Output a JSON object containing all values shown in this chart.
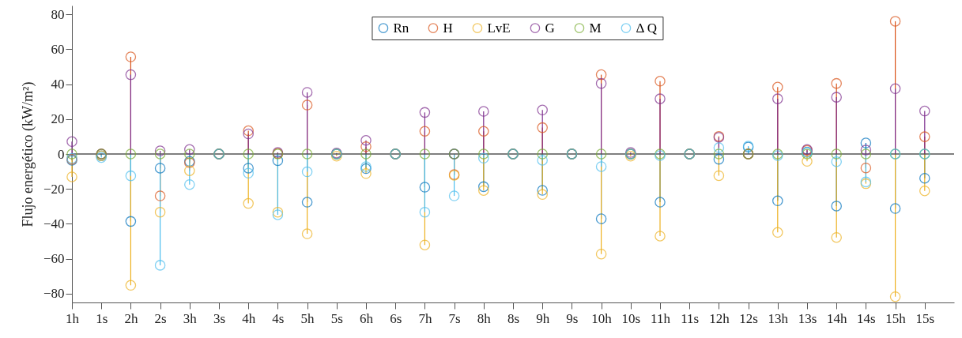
{
  "chart_data": {
    "type": "lollipop",
    "ylabel": "Flujo energético (kW/m²)",
    "categories": [
      "1h",
      "1s",
      "2h",
      "2s",
      "3h",
      "3s",
      "4h",
      "4s",
      "5h",
      "5s",
      "6h",
      "6s",
      "7h",
      "7s",
      "8h",
      "8s",
      "9h",
      "9s",
      "10h",
      "10s",
      "11h",
      "11s",
      "12h",
      "12s",
      "13h",
      "13s",
      "14h",
      "14s",
      "15h",
      "15s"
    ],
    "series": [
      {
        "name": "Rn",
        "color": "#0072bd",
        "values": [
          -3.6,
          -1,
          -38.6,
          -8.1,
          -4.2,
          0,
          -8.1,
          -3.8,
          -27.6,
          0,
          -8.4,
          0,
          -19,
          0,
          -18.7,
          0,
          -20.8,
          0,
          -37.1,
          0,
          -27.6,
          0,
          -3,
          4,
          -26.8,
          1.1,
          -29.8,
          6.3,
          -31.2,
          -13.9
        ]
      },
      {
        "name": "H",
        "color": "#d95319",
        "values": [
          -3,
          0,
          55.6,
          -24,
          -5,
          0,
          13.3,
          0.3,
          28,
          0,
          4.2,
          0,
          13,
          -11.8,
          13,
          0,
          15.1,
          0,
          45.4,
          0,
          41.7,
          0,
          10.1,
          0,
          38.3,
          2.1,
          40.4,
          -8,
          76,
          9.9
        ]
      },
      {
        "name": "LvE",
        "color": "#edb120",
        "values": [
          -13.1,
          -1,
          -75.2,
          -33.3,
          -9.6,
          0,
          -28.3,
          -33.3,
          -45.7,
          -1.2,
          -11.2,
          0,
          -52.1,
          -12.2,
          -20.9,
          0,
          -23.2,
          0,
          -57.3,
          -1.2,
          -47,
          0,
          -12.4,
          0,
          -44.9,
          -4.2,
          -47.8,
          -17,
          -81.7,
          -21.1
        ]
      },
      {
        "name": "G",
        "color": "#7e2f8e",
        "values": [
          7.1,
          0,
          45.4,
          1.8,
          2.6,
          0,
          11.5,
          0.9,
          35.3,
          0.6,
          7.8,
          0,
          23.8,
          0,
          24.4,
          0,
          25.2,
          0,
          40.4,
          0.9,
          31.6,
          0,
          9.5,
          0,
          31.6,
          2.6,
          32.5,
          2.3,
          37.4,
          24.6
        ]
      },
      {
        "name": "M",
        "color": "#77ac30",
        "values": [
          0,
          0,
          0,
          0,
          0,
          0,
          0,
          0,
          0,
          0,
          0,
          0,
          0,
          0,
          0,
          0,
          0,
          0,
          0,
          0,
          0,
          0,
          0,
          0,
          0,
          0,
          0,
          0,
          0,
          0
        ]
      },
      {
        "name": "Δ Q",
        "color": "#4dbeee",
        "values": [
          -2.5,
          -2,
          -12.5,
          -63.7,
          -17.5,
          0,
          -11,
          -34.8,
          -10.2,
          0,
          -7.2,
          0,
          -33.3,
          -24,
          -2.4,
          0,
          -3.6,
          0,
          -7.2,
          0,
          -0.9,
          0,
          3.6,
          4.5,
          -0.9,
          0.9,
          -4.4,
          -16,
          0,
          0
        ]
      }
    ],
    "ylim": [
      -85,
      85
    ],
    "yticks": [
      -80,
      -60,
      -40,
      -20,
      0,
      20,
      40,
      60,
      80
    ],
    "ref_lines": [
      {
        "axis": "y",
        "value": 0,
        "color": "#555555"
      }
    ],
    "legend": "top",
    "marker": "circle",
    "grid": false
  }
}
